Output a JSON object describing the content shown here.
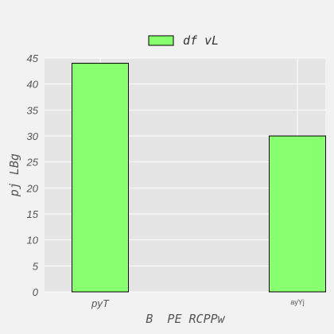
{
  "chart_data": {
    "type": "bar",
    "categories": [
      "pyT",
      "ayYj"
    ],
    "series": [
      {
        "name": "df vL",
        "values": [
          44,
          30
        ]
      }
    ],
    "xlabel": "B  PE RCPPw",
    "ylabel": "pj LBg",
    "ylim": [
      0,
      45
    ],
    "yticks": [
      0,
      5,
      10,
      15,
      20,
      25,
      30,
      35,
      40,
      45
    ],
    "grid": true,
    "legend_position": "top-center",
    "colors": {
      "bar": "#88ff6e",
      "bar_edge": "#000000",
      "plot_background": "#e5e5e5",
      "page_background": "#f2f2f2",
      "grid": "#ffffff"
    }
  }
}
